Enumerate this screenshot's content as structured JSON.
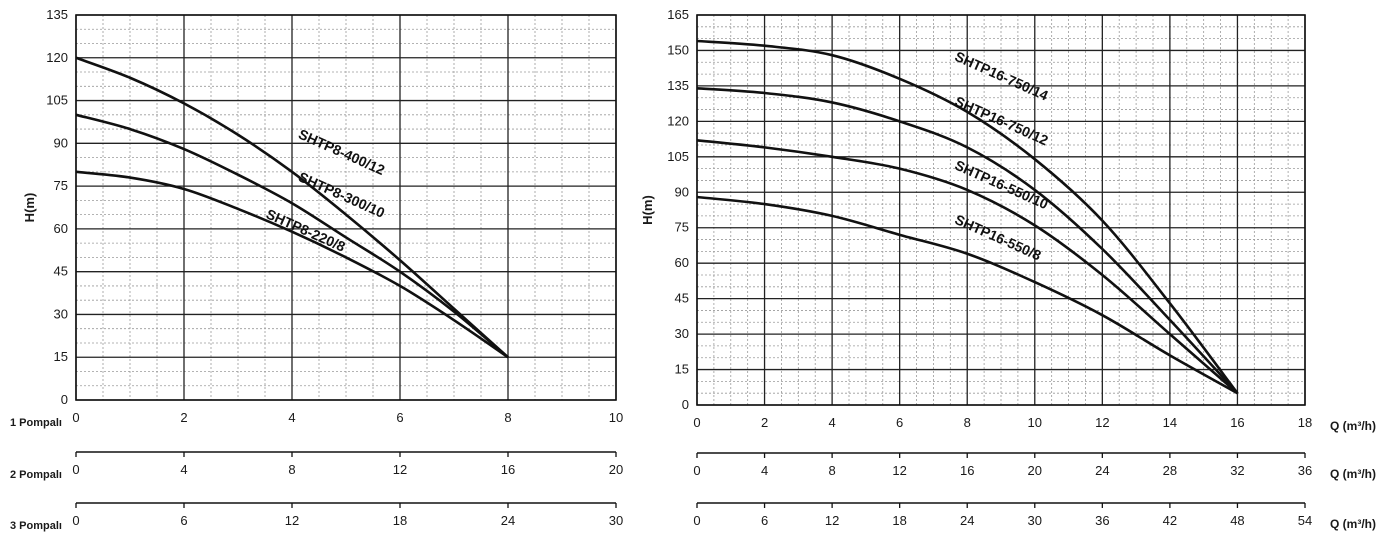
{
  "chart_data": [
    {
      "type": "line",
      "ylabel": "H(m)",
      "ylim": [
        0,
        135
      ],
      "yticks": [
        "0",
        "15",
        "30",
        "45",
        "60",
        "75",
        "90",
        "105",
        "120",
        "135"
      ],
      "xlim": [
        0,
        10
      ],
      "x_axes": [
        {
          "row_label": "1 Pompalı",
          "ticks": [
            "0",
            "2",
            "4",
            "6",
            "8",
            "10"
          ]
        },
        {
          "row_label": "2 Pompalı",
          "ticks": [
            "0",
            "4",
            "8",
            "12",
            "16",
            "20"
          ]
        },
        {
          "row_label": "3 Pompalı",
          "ticks": [
            "0",
            "6",
            "12",
            "18",
            "24",
            "30"
          ]
        }
      ],
      "grid": true,
      "series": [
        {
          "name": "SHTP8-400/12",
          "x": [
            0,
            1,
            2,
            3,
            4,
            5,
            6,
            7,
            8
          ],
          "y": [
            120,
            113,
            104,
            93,
            80,
            65,
            49,
            32,
            15
          ]
        },
        {
          "name": "SHTP8-300/10",
          "x": [
            0,
            1,
            2,
            3,
            4,
            5,
            6,
            7,
            8
          ],
          "y": [
            100,
            95,
            88,
            79,
            69,
            57,
            45,
            31,
            15
          ]
        },
        {
          "name": "SHTP8-220/8",
          "x": [
            0,
            1,
            2,
            3,
            4,
            5,
            6,
            7,
            8
          ],
          "y": [
            80,
            78,
            74,
            67,
            59,
            50,
            40,
            28,
            15
          ]
        }
      ]
    },
    {
      "type": "line",
      "ylabel": "H(m)",
      "ylim": [
        0,
        165
      ],
      "yticks": [
        "0",
        "15",
        "30",
        "45",
        "60",
        "75",
        "90",
        "105",
        "120",
        "135",
        "150",
        "165"
      ],
      "xlim": [
        0,
        18
      ],
      "x_axes": [
        {
          "unit_label": "Q (m³/h)",
          "ticks": [
            "0",
            "2",
            "4",
            "6",
            "8",
            "10",
            "12",
            "14",
            "16",
            "18"
          ]
        },
        {
          "unit_label": "Q (m³/h)",
          "ticks": [
            "0",
            "4",
            "8",
            "12",
            "16",
            "20",
            "24",
            "28",
            "32",
            "36"
          ]
        },
        {
          "unit_label": "Q (m³/h)",
          "ticks": [
            "0",
            "6",
            "12",
            "18",
            "24",
            "30",
            "36",
            "42",
            "48",
            "54"
          ]
        }
      ],
      "grid": true,
      "series": [
        {
          "name": "SHTP16-750/14",
          "x": [
            0,
            2,
            4,
            6,
            8,
            10,
            12,
            14,
            16
          ],
          "y": [
            154,
            152,
            148,
            138,
            124,
            104,
            78,
            43,
            5
          ]
        },
        {
          "name": "SHTP16-750/12",
          "x": [
            0,
            2,
            4,
            6,
            8,
            10,
            12,
            14,
            16
          ],
          "y": [
            134,
            132,
            128,
            120,
            109,
            91,
            66,
            36,
            5
          ]
        },
        {
          "name": "SHTP16-550/10",
          "x": [
            0,
            2,
            4,
            6,
            8,
            10,
            12,
            14,
            16
          ],
          "y": [
            112,
            109,
            105,
            100,
            91,
            76,
            55,
            30,
            5
          ]
        },
        {
          "name": "SHTP16-550/8",
          "x": [
            0,
            2,
            4,
            6,
            8,
            10,
            12,
            14,
            16
          ],
          "y": [
            88,
            85,
            80,
            72,
            64,
            52,
            38,
            21,
            5
          ]
        }
      ]
    }
  ]
}
